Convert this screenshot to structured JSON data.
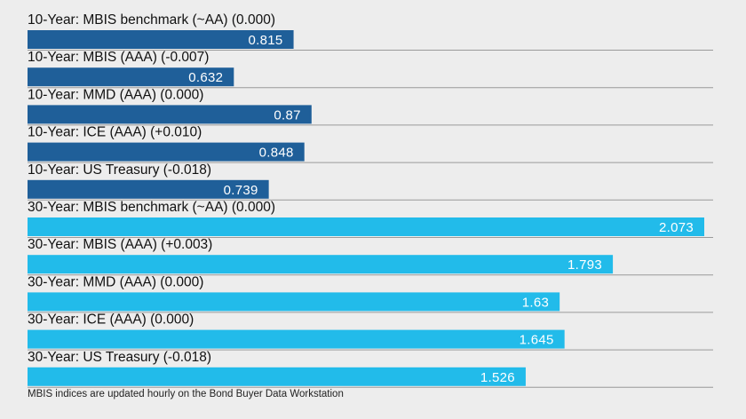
{
  "chart_data": {
    "type": "bar",
    "orientation": "horizontal",
    "categories": [
      "10-Year: MBIS benchmark (~AA) (0.000)",
      "10-Year: MBIS (AAA) (-0.007)",
      "10-Year: MMD (AAA) (0.000)",
      "10-Year: ICE (AAA) (+0.010)",
      "10-Year: US Treasury (-0.018)",
      "30-Year: MBIS benchmark (~AA) (0.000)",
      "30-Year: MBIS (AAA) (+0.003)",
      "30-Year: MMD (AAA) (0.000)",
      "30-Year: ICE (AAA) (0.000)",
      "30-Year: US Treasury (-0.018)"
    ],
    "values": [
      0.815,
      0.632,
      0.87,
      0.848,
      0.739,
      2.073,
      1.793,
      1.63,
      1.645,
      1.526
    ],
    "value_labels": [
      "0.815",
      "0.632",
      "0.87",
      "0.848",
      "0.739",
      "2.073",
      "1.793",
      "1.63",
      "1.645",
      "1.526"
    ],
    "colors": [
      "#1f5f99",
      "#1f5f99",
      "#1f5f99",
      "#1f5f99",
      "#1f5f99",
      "#22bbea",
      "#22bbea",
      "#22bbea",
      "#22bbea",
      "#22bbea"
    ],
    "xlim": [
      0,
      2.073
    ],
    "grid": false,
    "legend": "none",
    "title": "",
    "xlabel": "",
    "ylabel": ""
  },
  "footnote": "MBIS indices are updated hourly on the Bond Buyer Data Workstation"
}
